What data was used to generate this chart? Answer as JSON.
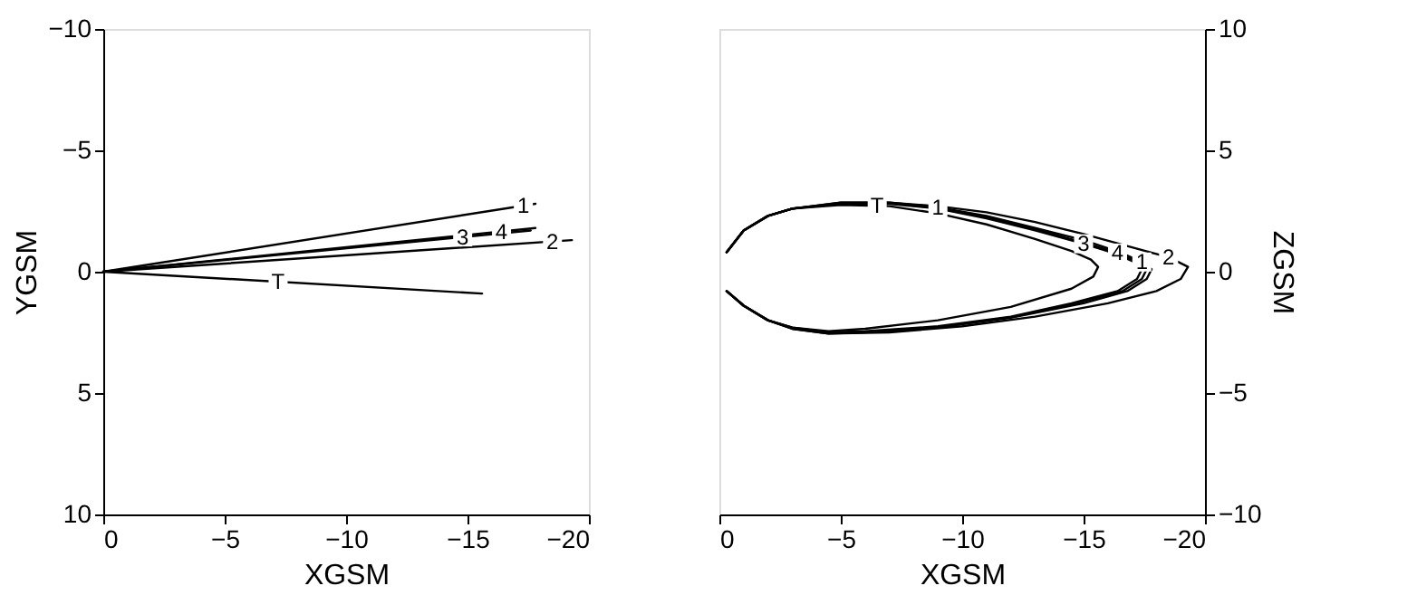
{
  "chart_data": [
    {
      "type": "line",
      "xlabel": "XGSM",
      "ylabel": "YGSM",
      "xlim": [
        0,
        -20
      ],
      "ylim": [
        10,
        -10
      ],
      "xticks": [
        0,
        -5,
        -10,
        -15,
        -20
      ],
      "yticks": [
        -10,
        -5,
        0,
        5,
        10
      ],
      "grid": false,
      "legend": false,
      "series": [
        {
          "color": "#000000",
          "x": [
            0,
            -17.8
          ],
          "values": [
            0,
            -2.8
          ]
        },
        {
          "color": "#000000",
          "x": [
            0,
            -19.3
          ],
          "values": [
            0,
            -1.3
          ]
        },
        {
          "color": "#000000",
          "x": [
            0,
            -17.6
          ],
          "values": [
            0,
            -1.7
          ]
        },
        {
          "color": "#000000",
          "x": [
            0,
            -17.8
          ],
          "values": [
            0,
            -1.8
          ]
        },
        {
          "color": "#000000",
          "x": [
            0,
            -15.6
          ],
          "values": [
            0,
            0.9
          ]
        }
      ],
      "annotations": [
        {
          "text": "1",
          "x": -17.3,
          "y": -2.72
        },
        {
          "text": "2",
          "x": -18.5,
          "y": -1.25
        },
        {
          "text": "3",
          "x": -14.8,
          "y": -1.43
        },
        {
          "text": "4",
          "x": -16.4,
          "y": -1.66
        },
        {
          "text": "T",
          "x": -7.2,
          "y": 0.42
        }
      ]
    },
    {
      "type": "line",
      "xlabel": "XGSM",
      "ylabel": "ZGSM",
      "xlim": [
        0,
        -20
      ],
      "ylim": [
        -10,
        10
      ],
      "xticks": [
        0,
        -5,
        -10,
        -15,
        -20
      ],
      "yticks": [
        -10,
        -5,
        0,
        5,
        10
      ],
      "grid": false,
      "legend": false,
      "series": [
        {
          "color": "#000000",
          "x": [
            -0.3,
            -1,
            -2,
            -3,
            -5,
            -7,
            -9,
            -11,
            -13,
            -15,
            -16.5,
            -17.4,
            -17.8,
            -17.6,
            -16.8,
            -15,
            -12,
            -9,
            -6,
            -4.5,
            -3,
            -2,
            -1,
            -0.3
          ],
          "values": [
            0.8,
            1.7,
            2.3,
            2.6,
            2.85,
            2.85,
            2.65,
            2.3,
            1.8,
            1.3,
            0.8,
            0.4,
            0.1,
            -0.3,
            -0.8,
            -1.3,
            -1.9,
            -2.3,
            -2.5,
            -2.55,
            -2.35,
            -2.0,
            -1.4,
            -0.8
          ]
        },
        {
          "color": "#000000",
          "x": [
            -0.3,
            -1,
            -2,
            -3,
            -5,
            -7,
            -9,
            -11,
            -13,
            -15,
            -17,
            -18.5,
            -19.3,
            -19,
            -18,
            -16,
            -13,
            -10,
            -7,
            -4.5,
            -3,
            -2,
            -1,
            -0.3
          ],
          "values": [
            0.8,
            1.7,
            2.3,
            2.6,
            2.85,
            2.85,
            2.7,
            2.45,
            2.05,
            1.55,
            1.0,
            0.6,
            0.2,
            -0.3,
            -0.8,
            -1.3,
            -1.85,
            -2.25,
            -2.5,
            -2.55,
            -2.35,
            -2.0,
            -1.4,
            -0.8
          ]
        },
        {
          "color": "#000000",
          "x": [
            -0.3,
            -1,
            -2,
            -3,
            -5,
            -7,
            -9,
            -11,
            -13,
            -15,
            -16.3,
            -17.1,
            -17.4,
            -17.2,
            -16.4,
            -14.5,
            -12,
            -9,
            -6,
            -4.5,
            -3,
            -2,
            -1,
            -0.3
          ],
          "values": [
            0.8,
            1.7,
            2.3,
            2.6,
            2.8,
            2.8,
            2.6,
            2.2,
            1.7,
            1.15,
            0.75,
            0.4,
            0.1,
            -0.3,
            -0.8,
            -1.3,
            -1.85,
            -2.25,
            -2.45,
            -2.5,
            -2.3,
            -2.0,
            -1.4,
            -0.8
          ]
        },
        {
          "color": "#000000",
          "x": [
            -0.3,
            -1,
            -2,
            -3,
            -5,
            -7,
            -9,
            -11,
            -13,
            -15,
            -16.4,
            -17.3,
            -17.6,
            -17.4,
            -16.6,
            -14.7,
            -12,
            -9,
            -6,
            -4.5,
            -3,
            -2,
            -1,
            -0.3
          ],
          "values": [
            0.8,
            1.7,
            2.3,
            2.6,
            2.82,
            2.82,
            2.62,
            2.25,
            1.75,
            1.2,
            0.77,
            0.4,
            0.1,
            -0.3,
            -0.8,
            -1.3,
            -1.88,
            -2.28,
            -2.48,
            -2.52,
            -2.32,
            -2.0,
            -1.4,
            -0.8
          ]
        },
        {
          "color": "#000000",
          "x": [
            -0.3,
            -1,
            -2,
            -3,
            -5,
            -7,
            -9,
            -11,
            -13,
            -14.5,
            -15.3,
            -15.6,
            -15.4,
            -14.5,
            -12,
            -9,
            -6,
            -4.5,
            -3,
            -2,
            -1,
            -0.3
          ],
          "values": [
            0.8,
            1.7,
            2.3,
            2.6,
            2.75,
            2.7,
            2.4,
            1.95,
            1.35,
            0.85,
            0.5,
            0.2,
            -0.2,
            -0.7,
            -1.45,
            -2.0,
            -2.35,
            -2.45,
            -2.3,
            -2.0,
            -1.4,
            -0.8
          ]
        }
      ],
      "annotations": [
        {
          "text": "1",
          "x": -17.4,
          "y": 0.4
        },
        {
          "text": "2",
          "x": -18.5,
          "y": 0.6
        },
        {
          "text": "3",
          "x": -15,
          "y": 1.15
        },
        {
          "text": "4",
          "x": -16.4,
          "y": 0.77
        },
        {
          "text": "T",
          "x": -6.5,
          "y": 2.72
        },
        {
          "text": "1",
          "x": -9,
          "y": 2.65
        }
      ]
    }
  ]
}
